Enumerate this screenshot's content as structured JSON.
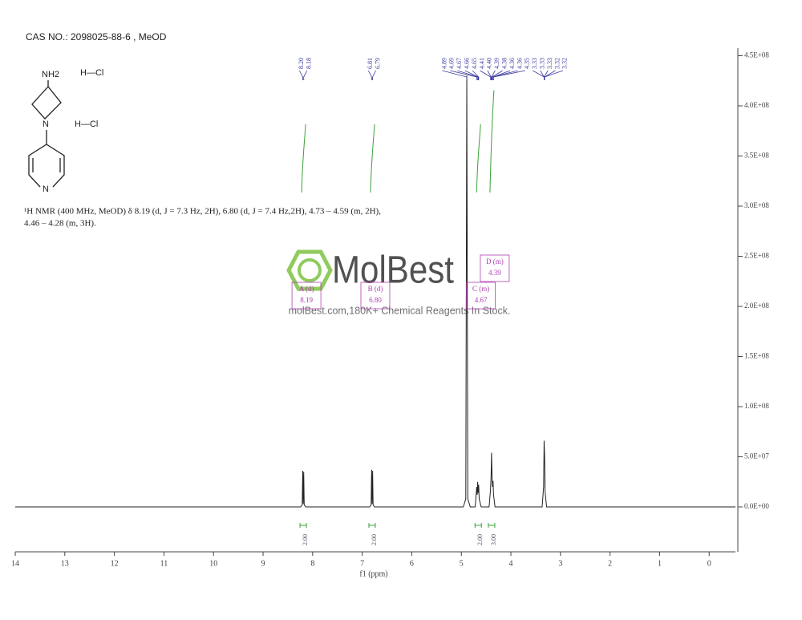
{
  "chart_data": {
    "type": "line",
    "title": "CAS NO.: 2098025-88-6 , MeOD",
    "description": [
      "¹H NMR (400 MHz, MeOD) δ 8.19 (d, J = 7.3 Hz, 2H), 6.80 (d, J = 7.4 Hz,2H), 4.73 – 4.59 (m, 2H),",
      "4.46 – 4.28 (m, 3H)."
    ],
    "structure": {
      "amine": "NH2",
      "acid_1": "H—Cl",
      "acid_2": "H—Cl",
      "ring_n_1": "N",
      "ring_n_2": "N"
    },
    "watermark": {
      "brand": "MolBest",
      "slogan": "molBest.com,180K+ Chemical Reagents In Stock."
    },
    "x_label": "f1 (ppm)",
    "xlim": [
      14,
      -0.53
    ],
    "xticks": [
      14,
      13,
      12,
      11,
      10,
      9,
      8,
      7,
      6,
      5,
      4,
      3,
      2,
      1,
      0
    ],
    "ylim": [
      -44800000,
      457600000
    ],
    "yticks": [
      {
        "value": 0,
        "label": "0.0E+00"
      },
      {
        "value": 50000000,
        "label": "5.0E+07"
      },
      {
        "value": 100000000,
        "label": "1.0E+08"
      },
      {
        "value": 150000000,
        "label": "1.5E+08"
      },
      {
        "value": 200000000,
        "label": "2.0E+08"
      },
      {
        "value": 250000000,
        "label": "2.5E+08"
      },
      {
        "value": 300000000,
        "label": "3.0E+08"
      },
      {
        "value": 350000000,
        "label": "3.5E+08"
      },
      {
        "value": 400000000,
        "label": "4.0E+08"
      },
      {
        "value": 450000000,
        "label": "4.5E+08"
      }
    ],
    "color": "#222222",
    "x": [
      14,
      8.24,
      8.21,
      8.2,
      8.19,
      8.18,
      8.17,
      8.14,
      6.85,
      6.82,
      6.81,
      6.8,
      6.79,
      6.78,
      6.75,
      4.96,
      4.91,
      4.89,
      4.87,
      4.82,
      4.72,
      4.69,
      4.68,
      4.67,
      4.66,
      4.65,
      4.64,
      4.6,
      4.44,
      4.41,
      4.4,
      4.39,
      4.38,
      4.37,
      4.36,
      4.35,
      4.32,
      3.37,
      3.34,
      3.33,
      3.32,
      3.31,
      3.28,
      -0.53
    ],
    "values": [
      0,
      0,
      2000000,
      36000000,
      3000000,
      35000000,
      2000000,
      0,
      0,
      2000000,
      37000000,
      3000000,
      36000000,
      2000000,
      0,
      0,
      8000000,
      430000000,
      8000000,
      0,
      0,
      20000000,
      12000000,
      25000000,
      14000000,
      22000000,
      8000000,
      0,
      0,
      18000000,
      30000000,
      54000000,
      28000000,
      20000000,
      26000000,
      12000000,
      0,
      0,
      20000000,
      66000000,
      50000000,
      15000000,
      0,
      0
    ],
    "peaks": [
      8.2,
      8.18,
      6.81,
      6.79,
      4.89,
      4.69,
      4.67,
      4.66,
      4.65,
      4.41,
      4.4,
      4.39,
      4.38,
      4.36,
      4.36,
      4.35,
      3.33,
      3.33,
      3.33,
      3.32,
      3.32
    ],
    "peak_labels": [
      "8.20",
      "8.18",
      "6.81",
      "6.79",
      "4.89",
      "4.69",
      "4.67",
      "4.66",
      "4.65",
      "4.41",
      "4.40",
      "4.39",
      "4.38",
      "4.36",
      "4.36",
      "4.35",
      "3.33",
      "3.33",
      "3.33",
      "3.32",
      "3.32"
    ],
    "peak_color": "#3a3aa0",
    "integrals": [
      {
        "ppm": 8.19,
        "value": 2,
        "label": "2.00"
      },
      {
        "ppm": 6.8,
        "value": 2,
        "label": "2.00"
      },
      {
        "ppm": 4.66,
        "value": 2,
        "label": "2.00"
      },
      {
        "ppm": 4.39,
        "value": 3,
        "label": "3.00"
      }
    ],
    "integral_color": "#3aa03a",
    "multiplets": [
      {
        "name": "A (d)",
        "shift": 8.19
      },
      {
        "name": "B (d)",
        "shift": 6.8,
        "shift_label": "6.80"
      },
      {
        "name": "C (m)",
        "shift": 4.67
      },
      {
        "name": "D (m)",
        "shift": 4.39
      }
    ],
    "multiplet_color": "#b040b0"
  }
}
